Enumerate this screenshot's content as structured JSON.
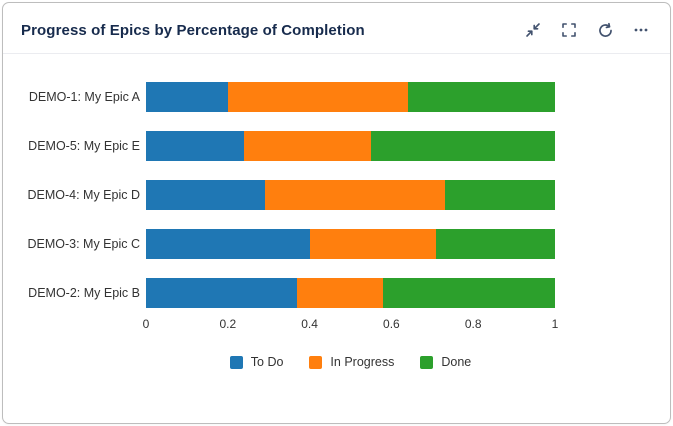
{
  "header": {
    "title": "Progress of Epics by Percentage of Completion",
    "icon_color": "#42526e",
    "actions": {
      "collapse": "collapse-icon",
      "fullscreen": "fullscreen-icon",
      "refresh": "refresh-icon",
      "more": "ellipsis-icon"
    }
  },
  "chart_data": {
    "type": "bar",
    "orientation": "horizontal",
    "stacked": true,
    "title": "Progress of Epics by Percentage of Completion",
    "categories": [
      "DEMO-1: My Epic A",
      "DEMO-5: My Epic E",
      "DEMO-4: My Epic D",
      "DEMO-3: My Epic C",
      "DEMO-2: My Epic B"
    ],
    "series": [
      {
        "name": "To Do",
        "color": "#1f77b4",
        "values": [
          0.2,
          0.24,
          0.29,
          0.4,
          0.37
        ]
      },
      {
        "name": "In Progress",
        "color": "#ff7f0e",
        "values": [
          0.44,
          0.31,
          0.44,
          0.31,
          0.21
        ]
      },
      {
        "name": "Done",
        "color": "#2ca02c",
        "values": [
          0.36,
          0.45,
          0.27,
          0.29,
          0.42
        ]
      }
    ],
    "xlim": [
      0,
      1
    ],
    "x_ticks": [
      0,
      0.2,
      0.4,
      0.6,
      0.8,
      1
    ],
    "x_tick_labels": [
      "0",
      "0.2",
      "0.4",
      "0.6",
      "0.8",
      "1"
    ],
    "grid": false,
    "legend_position": "bottom"
  }
}
